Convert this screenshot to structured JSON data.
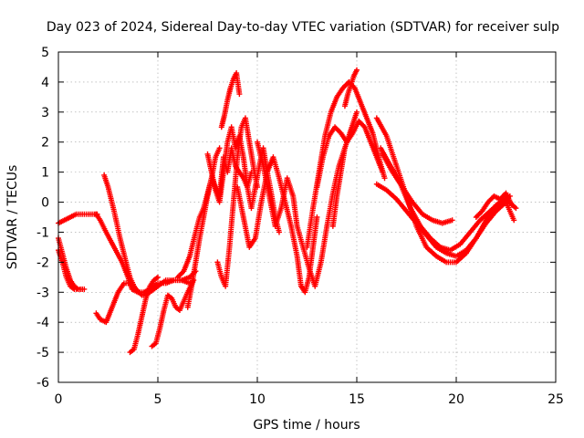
{
  "chart_data": {
    "type": "scatter",
    "title": "Day 023 of 2024, Sidereal Day-to-day VTEC variation (SDTVAR) for receiver sulp",
    "xlabel": "GPS time / hours",
    "ylabel": "SDTVAR / TECUs",
    "xlim": [
      0,
      25
    ],
    "ylim": [
      -6,
      5
    ],
    "xticks": [
      0,
      5,
      10,
      15,
      20,
      25
    ],
    "xtick_labels": [
      "0",
      "5",
      "10",
      "15",
      "20",
      "25"
    ],
    "yticks": [
      5,
      4,
      3,
      2,
      1,
      0,
      -1,
      -2,
      -3,
      -4,
      -5,
      -6
    ],
    "ytick_labels": [
      "5",
      "4",
      "3",
      "2",
      "1",
      "0",
      "-1",
      "-2",
      "-3",
      "-4",
      "-5",
      "-6"
    ],
    "grid": true,
    "marker": "plus",
    "series_color": "#ff0000",
    "series": [
      {
        "name": "s1",
        "x": [
          0.0,
          0.3,
          0.6,
          0.9,
          1.2,
          1.5,
          1.8,
          1.95
        ],
        "y": [
          -0.7,
          -0.6,
          -0.5,
          -0.4,
          -0.4,
          -0.4,
          -0.4,
          -0.4
        ]
      },
      {
        "name": "s2",
        "x": [
          0.0,
          0.2,
          0.4,
          0.6,
          0.8,
          1.0,
          1.3
        ],
        "y": [
          -1.6,
          -2.0,
          -2.5,
          -2.8,
          -2.9,
          -2.9,
          -2.9
        ]
      },
      {
        "name": "s3",
        "x": [
          0.0,
          0.2,
          0.4,
          0.6,
          0.8,
          1.0,
          1.2
        ],
        "y": [
          -1.2,
          -1.7,
          -2.2,
          -2.6,
          -2.8,
          -2.9,
          -2.9
        ]
      },
      {
        "name": "s4",
        "x": [
          1.9,
          2.1,
          2.4,
          2.8,
          3.2,
          3.5,
          3.7,
          4.0,
          4.3,
          4.6,
          5.0,
          5.4,
          5.8,
          6.2,
          6.6,
          6.9
        ],
        "y": [
          -0.4,
          -0.6,
          -1.0,
          -1.5,
          -2.0,
          -2.5,
          -2.9,
          -3.0,
          -3.0,
          -2.9,
          -2.7,
          -2.7,
          -2.6,
          -2.6,
          -2.5,
          -2.3
        ]
      },
      {
        "name": "s5",
        "x": [
          2.3,
          2.5,
          2.8,
          3.1,
          3.4,
          3.6,
          3.8,
          4.0
        ],
        "y": [
          0.9,
          0.5,
          -0.3,
          -1.2,
          -2.0,
          -2.5,
          -2.8,
          -3.0
        ]
      },
      {
        "name": "s6",
        "x": [
          1.9,
          2.1,
          2.4,
          2.7,
          3.0,
          3.3,
          3.6,
          3.9,
          4.2,
          4.6,
          5.0,
          5.4,
          5.8,
          6.2,
          6.6
        ],
        "y": [
          -3.7,
          -3.9,
          -4.0,
          -3.5,
          -3.0,
          -2.7,
          -2.7,
          -2.9,
          -3.1,
          -3.0,
          -2.8,
          -2.6,
          -2.6,
          -2.6,
          -2.7
        ]
      },
      {
        "name": "s7",
        "x": [
          3.6,
          3.8,
          4.0,
          4.2,
          4.4,
          4.6,
          4.8,
          5.0
        ],
        "y": [
          -5.0,
          -4.9,
          -4.4,
          -3.8,
          -3.2,
          -2.8,
          -2.6,
          -2.5
        ]
      },
      {
        "name": "s8",
        "x": [
          4.7,
          4.9,
          5.1,
          5.3,
          5.5,
          5.7,
          5.9,
          6.1,
          6.3,
          6.5,
          6.8
        ],
        "y": [
          -4.8,
          -4.7,
          -4.2,
          -3.6,
          -3.1,
          -3.2,
          -3.5,
          -3.6,
          -3.3,
          -3.0,
          -2.6
        ]
      },
      {
        "name": "s9",
        "x": [
          6.0,
          6.3,
          6.6,
          6.9,
          7.1,
          7.3,
          7.5,
          7.7,
          7.9,
          8.1,
          8.3,
          8.5,
          8.7,
          8.9,
          9.1,
          9.3,
          9.5,
          9.7
        ],
        "y": [
          -2.5,
          -2.3,
          -1.8,
          -1.0,
          -0.5,
          -0.2,
          0.3,
          0.8,
          0.5,
          0.2,
          1.5,
          1.0,
          1.8,
          1.2,
          1.0,
          0.8,
          0.5,
          1.0
        ]
      },
      {
        "name": "s10",
        "x": [
          6.5,
          6.7,
          6.9,
          7.1,
          7.3,
          7.5,
          7.7,
          7.9,
          8.1
        ],
        "y": [
          -3.5,
          -2.8,
          -2.0,
          -1.2,
          -0.5,
          0.2,
          0.8,
          1.5,
          1.8
        ]
      },
      {
        "name": "s11",
        "x": [
          7.5,
          7.7,
          7.9,
          8.1,
          8.3,
          8.5,
          8.7,
          8.9,
          9.1,
          9.3,
          9.5,
          9.7,
          9.9,
          10.1,
          10.3,
          10.5,
          10.7,
          10.9,
          11.1
        ],
        "y": [
          1.6,
          1.0,
          0.4,
          0.0,
          1.0,
          2.0,
          2.5,
          1.8,
          2.2,
          1.5,
          0.5,
          -0.2,
          0.5,
          1.2,
          1.8,
          1.0,
          0.3,
          -0.5,
          -1.0
        ]
      },
      {
        "name": "s12",
        "x": [
          8.2,
          8.35,
          8.5,
          8.65,
          8.8,
          8.95,
          9.1
        ],
        "y": [
          2.5,
          2.9,
          3.4,
          3.8,
          4.1,
          4.3,
          3.6
        ]
      },
      {
        "name": "s13",
        "x": [
          8.0,
          8.2,
          8.4,
          8.6,
          8.8,
          9.0,
          9.2,
          9.4,
          9.6,
          9.8,
          10.0
        ],
        "y": [
          -2.0,
          -2.5,
          -2.8,
          -1.5,
          0.0,
          1.5,
          2.5,
          2.8,
          2.0,
          1.2,
          0.5
        ]
      },
      {
        "name": "s14",
        "x": [
          9.0,
          9.3,
          9.6,
          9.9,
          10.2,
          10.5,
          10.8,
          11.1,
          11.4,
          11.7,
          12.0,
          12.2,
          12.4,
          12.6,
          12.8,
          13.0
        ],
        "y": [
          0.5,
          -0.5,
          -1.5,
          -1.2,
          0.0,
          1.0,
          1.5,
          0.8,
          0.0,
          -0.8,
          -1.8,
          -2.8,
          -3.0,
          -2.5,
          -1.5,
          -0.5
        ]
      },
      {
        "name": "s15",
        "x": [
          10.0,
          10.3,
          10.6,
          10.9,
          11.2,
          11.5,
          11.8,
          12.0,
          12.3,
          12.6,
          12.9,
          13.2,
          13.5,
          13.8,
          14.1,
          14.4
        ],
        "y": [
          2.0,
          1.2,
          0.2,
          -0.8,
          -0.2,
          0.8,
          0.2,
          -0.8,
          -1.5,
          -2.2,
          -2.8,
          -2.0,
          -0.8,
          0.3,
          1.2,
          1.8
        ]
      },
      {
        "name": "s16",
        "x": [
          12.5,
          12.8,
          13.1,
          13.4,
          13.7,
          14.0,
          14.3,
          14.6,
          14.9,
          15.2,
          15.5,
          15.8,
          16.1,
          16.4
        ],
        "y": [
          -1.5,
          -0.2,
          1.0,
          2.2,
          3.0,
          3.5,
          3.8,
          4.0,
          3.8,
          3.3,
          2.8,
          2.3,
          1.5,
          0.8
        ]
      },
      {
        "name": "s17",
        "x": [
          13.0,
          13.3,
          13.6,
          13.9,
          14.2,
          14.5,
          14.8,
          15.1,
          15.4,
          15.7,
          16.0,
          16.3
        ],
        "y": [
          0.5,
          1.5,
          2.2,
          2.5,
          2.3,
          2.0,
          2.3,
          2.7,
          2.5,
          2.0,
          1.5,
          1.0
        ]
      },
      {
        "name": "s18",
        "x": [
          14.4,
          14.55,
          14.7,
          14.85,
          15.0
        ],
        "y": [
          3.2,
          3.6,
          3.9,
          4.2,
          4.4
        ]
      },
      {
        "name": "s19",
        "x": [
          13.8,
          14.0,
          14.2,
          14.4,
          14.6,
          14.8,
          15.0
        ],
        "y": [
          -0.8,
          0.2,
          1.0,
          1.8,
          2.2,
          2.6,
          3.0
        ]
      },
      {
        "name": "s20",
        "x": [
          16.0,
          16.5,
          17.0,
          17.5,
          18.0,
          18.5,
          19.0,
          19.5,
          20.0,
          20.5,
          21.0,
          21.5,
          22.0,
          22.5,
          23.0
        ],
        "y": [
          2.8,
          2.2,
          1.2,
          0.2,
          -0.8,
          -1.5,
          -1.8,
          -2.0,
          -2.0,
          -1.7,
          -1.2,
          -0.6,
          -0.1,
          0.1,
          -0.2
        ]
      },
      {
        "name": "s21",
        "x": [
          16.2,
          16.7,
          17.2,
          17.7,
          18.2,
          18.7,
          19.2,
          19.7,
          20.2,
          20.7,
          21.2,
          21.7,
          22.2,
          22.7
        ],
        "y": [
          1.8,
          1.2,
          0.6,
          -0.2,
          -0.8,
          -1.2,
          -1.5,
          -1.6,
          -1.4,
          -1.0,
          -0.6,
          -0.3,
          0.0,
          0.2
        ]
      },
      {
        "name": "s22",
        "x": [
          16.0,
          16.5,
          17.0,
          17.5,
          18.0,
          18.5,
          19.0,
          19.5,
          20.0,
          20.5,
          21.0,
          21.5,
          22.0,
          22.5,
          22.9
        ],
        "y": [
          0.6,
          0.4,
          0.1,
          -0.3,
          -0.7,
          -1.1,
          -1.5,
          -1.7,
          -1.8,
          -1.6,
          -1.2,
          -0.7,
          -0.3,
          0.0,
          -0.6
        ]
      },
      {
        "name": "s23",
        "x": [
          16.3,
          16.8,
          17.3,
          17.8,
          18.3,
          18.8,
          19.3,
          19.8
        ],
        "y": [
          1.6,
          1.0,
          0.5,
          0.0,
          -0.4,
          -0.6,
          -0.7,
          -0.6
        ]
      },
      {
        "name": "s24",
        "x": [
          21.0,
          21.3,
          21.6,
          21.9,
          22.2,
          22.5,
          22.8
        ],
        "y": [
          -0.5,
          -0.3,
          0.0,
          0.2,
          0.1,
          0.3,
          -0.1
        ]
      }
    ]
  }
}
